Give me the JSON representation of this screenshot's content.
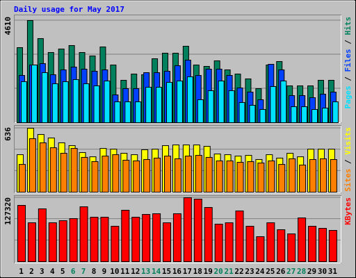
{
  "title": "Daily usage for May 2017",
  "title_color": "#0000ff",
  "separator": "/",
  "chart_data": [
    {
      "type": "bar",
      "ylim": [
        0,
        4610
      ],
      "yticks": [
        4610
      ],
      "series": [
        {
          "name": "Hits",
          "color": "#00805c",
          "values": [
            3387,
            4610,
            3795,
            3167,
            3324,
            3481,
            3167,
            3011,
            3418,
            2603,
            1913,
            2195,
            2164,
            2885,
            3136,
            3136,
            3450,
            2603,
            2540,
            2791,
            2383,
            2195,
            1976,
            1537,
            2603,
            2760,
            1662,
            1662,
            1662,
            1913,
            1913
          ]
        },
        {
          "name": "Files",
          "color": "#0040ff",
          "values": [
            2132,
            2603,
            2666,
            2164,
            2383,
            2509,
            2415,
            2321,
            2383,
            1254,
            1537,
            1537,
            2258,
            2258,
            2321,
            2572,
            2822,
            2132,
            2415,
            2415,
            2132,
            1568,
            1380,
            1035,
            2634,
            2383,
            1223,
            1223,
            1129,
            1286,
            1380
          ]
        },
        {
          "name": "Pages",
          "color": "#00e0ff",
          "values": [
            1850,
            2603,
            2258,
            1756,
            1850,
            1944,
            1756,
            1662,
            1882,
            941,
            941,
            941,
            1599,
            1599,
            1819,
            1882,
            2070,
            1035,
            1443,
            1882,
            1443,
            909,
            784,
            596,
            1631,
            1882,
            721,
            721,
            596,
            659,
            941
          ]
        }
      ]
    },
    {
      "type": "bar",
      "ylim": [
        0,
        636
      ],
      "yticks": [
        636
      ],
      "series": [
        {
          "name": "Visits",
          "color": "#ffff00",
          "values": [
            373,
            636,
            574,
            539,
            491,
            463,
            394,
            352,
            435,
            428,
            387,
            373,
            422,
            428,
            463,
            470,
            470,
            470,
            456,
            380,
            373,
            359,
            366,
            325,
            373,
            339,
            387,
            352,
            428,
            428,
            428
          ]
        },
        {
          "name": "Sites",
          "color": "#ff8000",
          "values": [
            276,
            532,
            491,
            442,
            387,
            435,
            346,
            304,
            359,
            373,
            318,
            311,
            325,
            339,
            359,
            332,
            359,
            366,
            346,
            311,
            311,
            297,
            304,
            290,
            311,
            276,
            332,
            270,
            325,
            332,
            325
          ]
        }
      ]
    },
    {
      "type": "bar",
      "ylim": [
        0,
        127320
      ],
      "yticks": [
        127320
      ],
      "categories": [
        "1",
        "2",
        "3",
        "4",
        "5",
        "6",
        "7",
        "8",
        "9",
        "10",
        "11",
        "12",
        "13",
        "14",
        "15",
        "16",
        "17",
        "18",
        "19",
        "20",
        "21",
        "22",
        "23",
        "24",
        "25",
        "26",
        "27",
        "28",
        "29",
        "30",
        "31"
      ],
      "category_colors": [
        "#000000",
        "#000000",
        "#000000",
        "#000000",
        "#000000",
        "#00805c",
        "#00805c",
        "#000000",
        "#000000",
        "#000000",
        "#000000",
        "#000000",
        "#00805c",
        "#00805c",
        "#000000",
        "#000000",
        "#000000",
        "#000000",
        "#000000",
        "#00805c",
        "#00805c",
        "#000000",
        "#000000",
        "#000000",
        "#000000",
        "#000000",
        "#00805c",
        "#00805c",
        "#000000",
        "#000000",
        "#000000"
      ],
      "series": [
        {
          "name": "KBytes",
          "color": "#ff0000",
          "values": [
            112104,
            77504,
            105184,
            77504,
            81656,
            85808,
            109336,
            88576,
            88576,
            70584,
            102416,
            88576,
            94112,
            95496,
            77504,
            95496,
            127320,
            124560,
            107952,
            74736,
            77504,
            101032,
            70584,
            49824,
            77504,
            63664,
            55360,
            87192,
            70584,
            66432,
            62280
          ]
        }
      ]
    }
  ]
}
